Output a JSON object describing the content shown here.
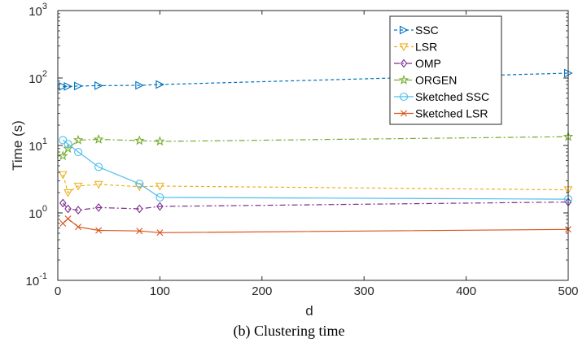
{
  "caption": "(b) Clustering time",
  "chart_data": {
    "type": "line",
    "title": "",
    "xlabel": "d",
    "ylabel": "Time (s)",
    "xlim": [
      0,
      500
    ],
    "ylim": [
      0.1,
      1000
    ],
    "yscale": "log",
    "grid": false,
    "legend_position": "top-right",
    "x_ticks": [
      "0",
      "100",
      "200",
      "300",
      "400",
      "500"
    ],
    "y_ticks": [
      {
        "base": "10",
        "exp": "-1"
      },
      {
        "base": "10",
        "exp": "0"
      },
      {
        "base": "10",
        "exp": "1"
      },
      {
        "base": "10",
        "exp": "2"
      },
      {
        "base": "10",
        "exp": "3"
      }
    ],
    "series": [
      {
        "name": "SSC",
        "color": "#0072BD",
        "dash": "dashed",
        "marker": "triangle-right",
        "x": [
          5,
          10,
          20,
          40,
          80,
          100,
          500
        ],
        "y": [
          75,
          75,
          76,
          77,
          78,
          80,
          118
        ]
      },
      {
        "name": "LSR",
        "color": "#EDB120",
        "dash": "dashed",
        "marker": "triangle-down",
        "x": [
          5,
          10,
          20,
          40,
          80,
          100,
          500
        ],
        "y": [
          3.7,
          2.0,
          2.5,
          2.65,
          2.45,
          2.5,
          2.2
        ]
      },
      {
        "name": "OMP",
        "color": "#7E2F8E",
        "dash": "dashdot",
        "marker": "diamond",
        "x": [
          5,
          10,
          20,
          40,
          80,
          100,
          500
        ],
        "y": [
          1.4,
          1.15,
          1.1,
          1.2,
          1.15,
          1.25,
          1.45
        ]
      },
      {
        "name": "ORGEN",
        "color": "#77AC30",
        "dash": "dashdot",
        "marker": "pentagram",
        "x": [
          5,
          10,
          20,
          40,
          80,
          100,
          500
        ],
        "y": [
          7.0,
          9.0,
          12.0,
          12.3,
          11.8,
          11.5,
          13.5
        ]
      },
      {
        "name": "Sketched SSC",
        "color": "#4DBEEE",
        "dash": "solid",
        "marker": "circle",
        "x": [
          5,
          10,
          20,
          40,
          80,
          100,
          500
        ],
        "y": [
          12.0,
          10.5,
          8.0,
          4.8,
          2.7,
          1.7,
          1.6
        ]
      },
      {
        "name": "Sketched LSR",
        "color": "#D95319",
        "dash": "solid",
        "marker": "x",
        "x": [
          5,
          10,
          20,
          40,
          80,
          100,
          500
        ],
        "y": [
          0.7,
          0.82,
          0.62,
          0.55,
          0.54,
          0.51,
          0.57
        ]
      }
    ]
  }
}
